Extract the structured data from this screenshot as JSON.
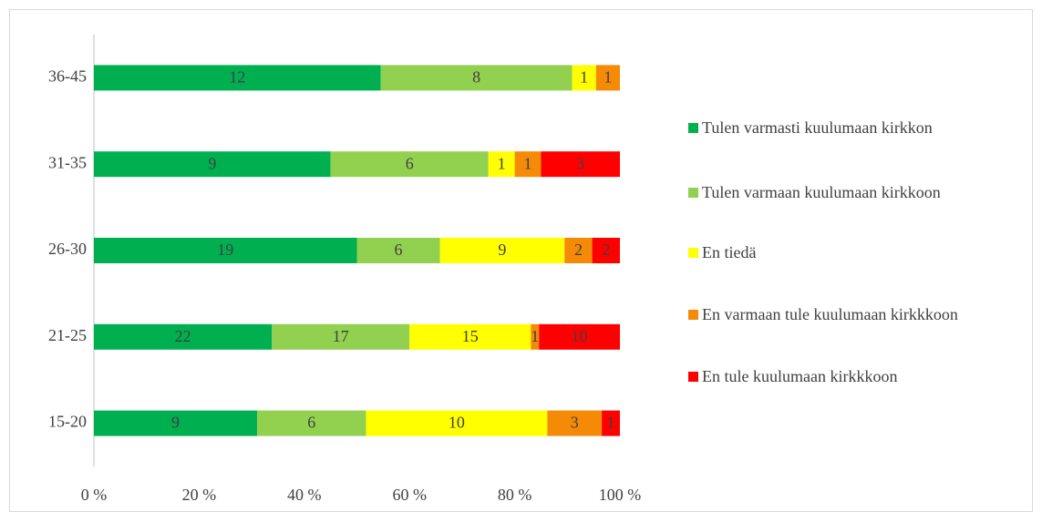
{
  "chart_data": {
    "type": "bar",
    "orientation": "horizontal",
    "stacked": "percent",
    "categories": [
      "36-45",
      "31-35",
      "26-30",
      "21-25",
      "15-20"
    ],
    "series": [
      {
        "name": "Tulen varmasti kuulumaan kirkkon",
        "color": "#00b050",
        "values": [
          12,
          9,
          19,
          22,
          9
        ]
      },
      {
        "name": "Tulen varmaan kuulumaan kirkkoon",
        "color": "#92d050",
        "values": [
          8,
          6,
          6,
          17,
          6
        ]
      },
      {
        "name": "En tiedä",
        "color": "#ffff00",
        "values": [
          1,
          1,
          9,
          15,
          10
        ]
      },
      {
        "name": "En varmaan tule kuulumaan kirkkkoon",
        "color": "#f58a07",
        "values": [
          1,
          1,
          2,
          1,
          3
        ]
      },
      {
        "name": "En tule kuulumaan kirkkkoon",
        "color": "#ff0000",
        "values": [
          0,
          3,
          2,
          10,
          1
        ]
      }
    ],
    "xlim": [
      0,
      100
    ],
    "xticks": [
      {
        "value": 0,
        "label": "0 %"
      },
      {
        "value": 20,
        "label": "20 %"
      },
      {
        "value": 40,
        "label": "40 %"
      },
      {
        "value": 60,
        "label": "60 %"
      },
      {
        "value": 80,
        "label": "80 %"
      },
      {
        "value": 100,
        "label": "100 %"
      }
    ],
    "grid": false,
    "legend": "right"
  }
}
